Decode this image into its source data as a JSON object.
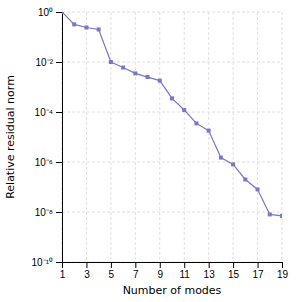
{
  "chart_data": {
    "type": "line",
    "xlabel": "Number of modes",
    "ylabel": "Relative residual norm",
    "x": [
      1,
      2,
      3,
      4,
      5,
      6,
      7,
      8,
      9,
      10,
      11,
      12,
      13,
      14,
      15,
      16,
      17,
      18,
      19
    ],
    "values": [
      1.0,
      0.32,
      0.24,
      0.2,
      0.01,
      0.006,
      0.0035,
      0.0025,
      0.0018,
      0.00035,
      0.00012,
      3.5e-05,
      1.8e-05,
      1.5e-06,
      8e-07,
      2e-07,
      8e-08,
      8e-09,
      7e-09
    ],
    "color": "#7777cc",
    "marker": "square",
    "log": "y",
    "grid": true,
    "xlim": [
      1,
      19
    ],
    "ylim": [
      1e-10,
      1
    ],
    "xticks": [
      1,
      3,
      5,
      7,
      9,
      11,
      13,
      15,
      17,
      19
    ],
    "yticks": [
      {
        "value": 1,
        "label": "10⁰"
      },
      {
        "value": 0.01,
        "label": "10⁻²"
      },
      {
        "value": 0.0001,
        "label": "10⁻⁴"
      },
      {
        "value": 1e-06,
        "label": "10⁻⁶"
      },
      {
        "value": 1e-08,
        "label": "10⁻⁸"
      },
      {
        "value": 1e-10,
        "label": "10⁻¹⁰"
      }
    ]
  }
}
